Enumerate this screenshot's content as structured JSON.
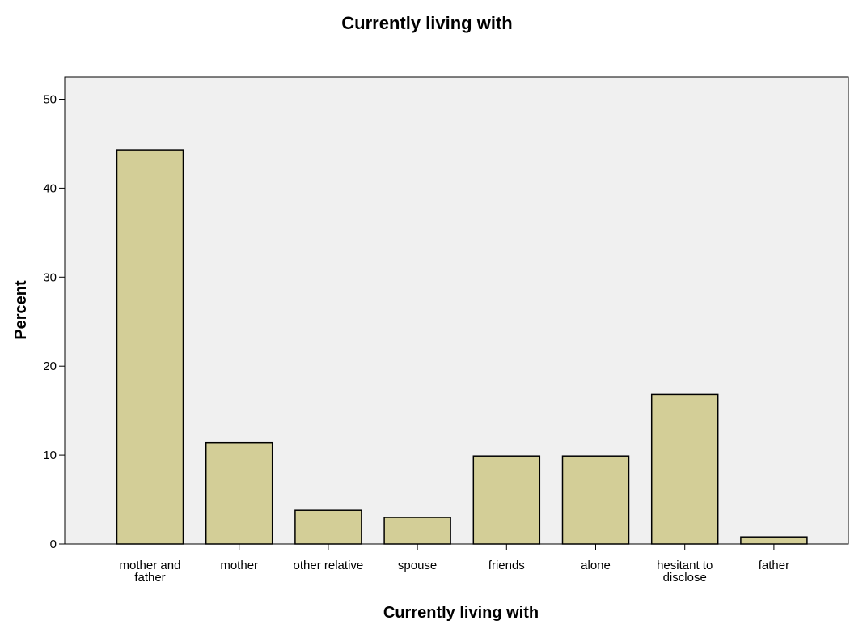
{
  "chart_data": {
    "type": "bar",
    "title": "Currently living with",
    "xlabel": "Currently living with",
    "ylabel": "Percent",
    "categories": [
      "mother and father",
      "mother",
      "other relative",
      "spouse",
      "friends",
      "alone",
      "hesitant to disclose",
      "father"
    ],
    "category_label_lines": [
      [
        "mother and",
        "father"
      ],
      [
        "mother"
      ],
      [
        "other relative"
      ],
      [
        "spouse"
      ],
      [
        "friends"
      ],
      [
        "alone"
      ],
      [
        "hesitant to",
        "disclose"
      ],
      [
        "father"
      ]
    ],
    "values": [
      44.3,
      11.4,
      3.8,
      3.0,
      9.9,
      9.9,
      16.8,
      0.8
    ],
    "ylim": [
      0,
      52.5
    ],
    "yticks": [
      0,
      10,
      20,
      30,
      40,
      50
    ],
    "grid": false,
    "legend": "none",
    "colors": {
      "plot_background": "#f0f0f0",
      "bar_fill": "#d3ce97",
      "bar_stroke": "#000000",
      "axis": "#000000"
    }
  }
}
